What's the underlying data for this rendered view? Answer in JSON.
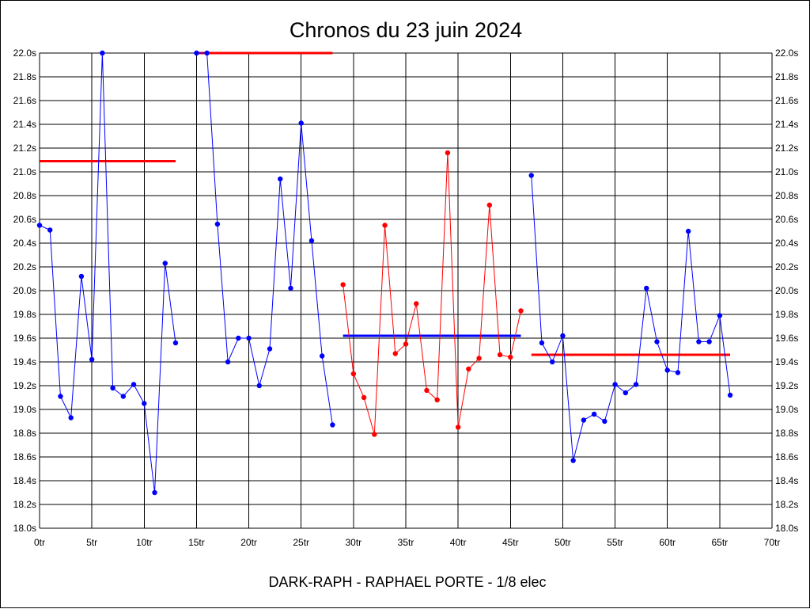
{
  "chart_data": {
    "type": "line",
    "title": "Chronos du 23 juin 2024",
    "footer": "DARK-RAPH - RAPHAEL PORTE - 1/8 elec",
    "ylim": [
      18.0,
      22.0
    ],
    "xlim": [
      0,
      70
    ],
    "y_ticks": [
      "18.0s",
      "18.2s",
      "18.4s",
      "18.6s",
      "18.8s",
      "19.0s",
      "19.2s",
      "19.4s",
      "19.6s",
      "19.8s",
      "20.0s",
      "20.2s",
      "20.4s",
      "20.6s",
      "20.8s",
      "21.0s",
      "21.2s",
      "21.4s",
      "21.6s",
      "21.8s",
      "22.0s"
    ],
    "x_ticks": [
      "0tr",
      "5tr",
      "10tr",
      "15tr",
      "20tr",
      "25tr",
      "30tr",
      "35tr",
      "40tr",
      "45tr",
      "50tr",
      "55tr",
      "60tr",
      "65tr",
      "70tr"
    ],
    "grid": true,
    "colors": {
      "blue": "#0000ff",
      "red": "#ff0000",
      "grid": "#000000"
    },
    "series": [
      {
        "color": "#0000ff",
        "x": [
          0,
          1,
          2,
          3,
          4,
          5,
          6,
          7,
          8,
          9,
          10,
          11,
          12,
          13
        ],
        "y": [
          20.55,
          20.51,
          19.11,
          18.93,
          20.12,
          19.42,
          22.0,
          19.18,
          19.11,
          19.21,
          19.05,
          18.3,
          20.23,
          19.56
        ]
      },
      {
        "color": "#0000ff",
        "x": [
          15,
          16,
          17,
          18,
          19,
          20,
          21,
          22,
          23,
          24,
          25,
          26,
          27,
          28
        ],
        "y": [
          22.0,
          22.0,
          20.56,
          19.4,
          19.6,
          19.6,
          19.2,
          19.51,
          20.94,
          20.02,
          21.41,
          20.42,
          19.45,
          18.87
        ]
      },
      {
        "color": "#ff0000",
        "x": [
          29,
          30,
          31,
          32,
          33,
          34,
          35,
          36,
          37,
          38,
          39,
          40,
          41,
          42,
          43,
          44,
          45,
          46
        ],
        "y": [
          20.05,
          19.3,
          19.1,
          18.79,
          20.55,
          19.47,
          19.55,
          19.89,
          19.16,
          19.08,
          21.16,
          18.85,
          19.34,
          19.43,
          20.72,
          19.46,
          19.44,
          19.83
        ]
      },
      {
        "color": "#0000ff",
        "x": [
          47,
          48,
          49,
          50,
          51,
          52,
          53,
          54,
          55,
          56,
          57,
          58,
          59,
          60,
          61,
          62,
          63,
          64,
          65,
          66
        ],
        "y": [
          20.97,
          19.56,
          19.4,
          19.62,
          18.57,
          18.91,
          18.96,
          18.9,
          19.21,
          19.14,
          19.21,
          20.02,
          19.57,
          19.33,
          19.31,
          20.5,
          19.57,
          19.57,
          19.79,
          19.12
        ]
      }
    ],
    "reference_lines": [
      {
        "x": [
          0,
          13
        ],
        "y": 21.09,
        "color": "#ff0000"
      },
      {
        "x": [
          15,
          28
        ],
        "y": 22.0,
        "color": "#ff0000"
      },
      {
        "x": [
          29,
          46
        ],
        "y": 19.62,
        "color": "#0000ff"
      },
      {
        "x": [
          47,
          66
        ],
        "y": 19.46,
        "color": "#ff0000"
      }
    ]
  }
}
